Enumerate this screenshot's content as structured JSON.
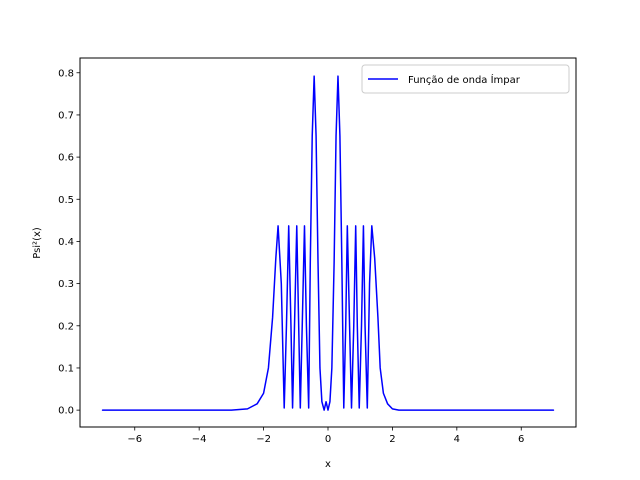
{
  "chart_data": {
    "type": "line",
    "title": "",
    "xlabel": "x",
    "ylabel": "Psi²(x)",
    "xlim": [
      -7.7,
      7.7
    ],
    "ylim": [
      -0.04,
      0.835
    ],
    "xticks": [
      -6,
      -4,
      -2,
      0,
      2,
      4,
      6
    ],
    "xtick_labels": [
      "−6",
      "−4",
      "−2",
      "0",
      "2",
      "4",
      "6"
    ],
    "yticks": [
      0.0,
      0.1,
      0.2,
      0.3,
      0.4,
      0.5,
      0.6,
      0.7,
      0.8
    ],
    "ytick_labels": [
      "0.0",
      "0.1",
      "0.2",
      "0.3",
      "0.4",
      "0.5",
      "0.6",
      "0.7",
      "0.8"
    ],
    "grid": false,
    "legend_position": "top-right",
    "series": [
      {
        "name": "Função de onda Ímpar",
        "color": "#0000ff",
        "x": [
          -7.0,
          -3.0,
          -2.5,
          -2.2,
          -2.0,
          -1.85,
          -1.72,
          -1.62,
          -1.55,
          -1.45,
          -1.36,
          -1.29,
          -1.22,
          -1.15,
          -1.1,
          -1.04,
          -0.97,
          -0.91,
          -0.86,
          -0.8,
          -0.73,
          -0.67,
          -0.6,
          -0.55,
          -0.49,
          -0.43,
          -0.37,
          -0.31,
          -0.25,
          -0.19,
          -0.12,
          -0.06,
          0.0,
          0.06,
          0.12,
          0.19,
          0.25,
          0.31,
          0.37,
          0.43,
          0.49,
          0.55,
          0.6,
          0.67,
          0.73,
          0.8,
          0.86,
          0.91,
          0.97,
          1.04,
          1.1,
          1.15,
          1.22,
          1.29,
          1.36,
          1.45,
          1.55,
          1.62,
          1.72,
          1.85,
          2.0,
          2.2,
          2.5,
          3.0,
          7.0
        ],
        "values": [
          0.0,
          0.0,
          0.003,
          0.015,
          0.04,
          0.1,
          0.22,
          0.36,
          0.437,
          0.3,
          0.005,
          0.2,
          0.437,
          0.2,
          0.005,
          0.2,
          0.437,
          0.2,
          0.005,
          0.2,
          0.437,
          0.2,
          0.005,
          0.35,
          0.65,
          0.792,
          0.65,
          0.35,
          0.1,
          0.02,
          0.0,
          0.02,
          0.0,
          0.02,
          0.1,
          0.35,
          0.65,
          0.792,
          0.65,
          0.35,
          0.005,
          0.2,
          0.437,
          0.2,
          0.005,
          0.2,
          0.437,
          0.2,
          0.005,
          0.2,
          0.437,
          0.2,
          0.005,
          0.3,
          0.437,
          0.36,
          0.22,
          0.1,
          0.04,
          0.015,
          0.003,
          0.0,
          0.0,
          0.0,
          0.0
        ]
      }
    ]
  }
}
